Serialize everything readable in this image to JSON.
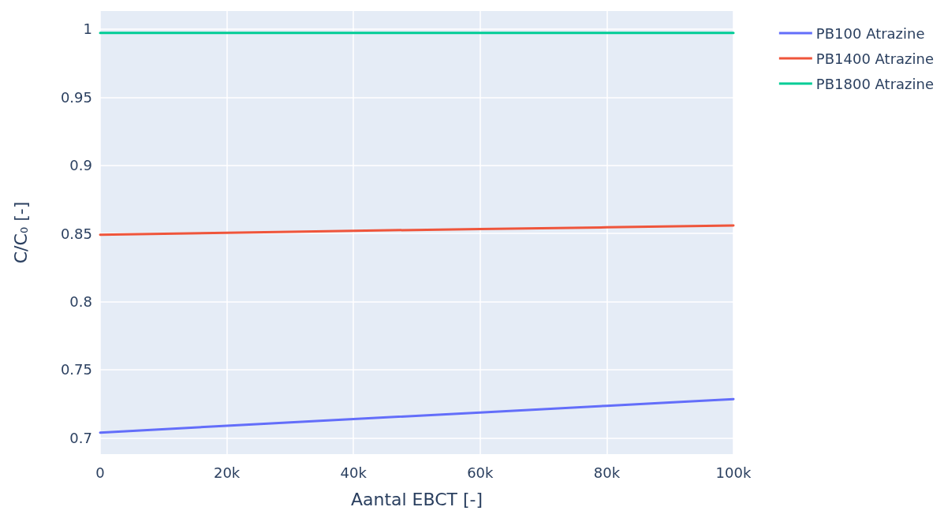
{
  "chart_data": {
    "type": "line",
    "xlabel": "Aantal EBCT [-]",
    "ylabel": "C/C$_{0}$ [-]",
    "x": [
      0,
      20000,
      40000,
      60000,
      80000,
      100000
    ],
    "series": [
      {
        "name": "PB100 Atrazine",
        "color": "#636efa",
        "values": [
          0.7038,
          0.7088,
          0.7137,
          0.7186,
          0.7235,
          0.7284
        ]
      },
      {
        "name": "PB1400 Atrazine",
        "color": "#ef553b",
        "values": [
          0.849,
          0.8505,
          0.852,
          0.8532,
          0.8545,
          0.8559
        ]
      },
      {
        "name": "PB1800 Atrazine",
        "color": "#00cc96",
        "values": [
          0.9973,
          0.9973,
          0.9973,
          0.9973,
          0.9973,
          0.9973
        ]
      }
    ],
    "xlim": [
      0,
      100000
    ],
    "xticks": [
      0,
      {
        "value": 20000,
        "label": "20k"
      },
      {
        "value": 40000,
        "label": "40k"
      },
      {
        "value": 60000,
        "label": "60k"
      },
      {
        "value": 80000,
        "label": "80k"
      },
      {
        "value": 100000,
        "label": "100k"
      }
    ],
    "ylim": [
      0.688,
      1.0133
    ],
    "yticks": [
      0.7,
      0.75,
      0.8,
      0.85,
      0.9,
      0.95,
      1
    ],
    "grid": true,
    "legend": "top right"
  }
}
